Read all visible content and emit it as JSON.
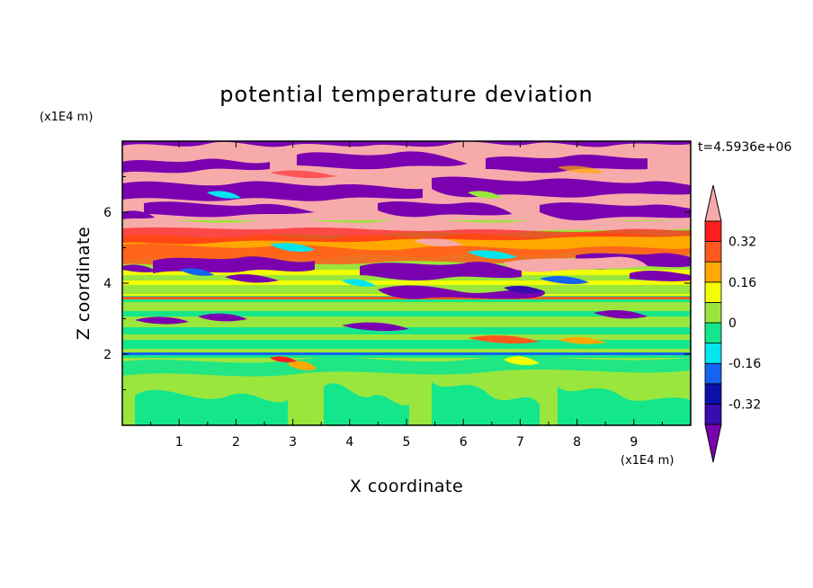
{
  "chart_data": {
    "type": "heatmap",
    "title": "potential temperature deviation",
    "xlabel": "X coordinate",
    "ylabel": "Z coordinate",
    "x_unit": "(x1E4 m)",
    "y_unit": "(x1E4 m)",
    "time_label": "t=4.5936e+06",
    "xlim": [
      0,
      10
    ],
    "ylim": [
      0,
      8
    ],
    "x_ticks": [
      "1",
      "2",
      "3",
      "4",
      "5",
      "6",
      "7",
      "8",
      "9"
    ],
    "y_ticks": [
      "2",
      "4",
      "6"
    ],
    "colorbar": {
      "labels": [
        "0.32",
        "0.16",
        "0",
        "-0.16",
        "-0.32"
      ],
      "label_values": [
        0.32,
        0.16,
        0,
        -0.16,
        -0.32
      ],
      "levels": [
        -0.4,
        -0.32,
        -0.24,
        -0.16,
        -0.08,
        0,
        0.08,
        0.16,
        0.24,
        0.32,
        0.4
      ],
      "colors": [
        "#7a00b0",
        "#3a0cb0",
        "#0a10a8",
        "#1464f0",
        "#00e6ee",
        "#14e68c",
        "#9ae63c",
        "#f2ff00",
        "#ffa800",
        "#ff5a1e",
        "#ff1e1e",
        "#f7aaaa"
      ],
      "extend": "both"
    },
    "layers": [
      {
        "z_range": [
          0,
          1.9
        ],
        "dominant": [
          "-0.08 to 0",
          "0 to 0.08"
        ]
      },
      {
        "z_range": [
          1.9,
          3.7
        ],
        "dominant": [
          "0 to 0.08"
        ],
        "note": "horizontal stratified bands"
      },
      {
        "z_range": [
          3.6,
          3.65
        ],
        "dominant": [
          ">0.32"
        ]
      },
      {
        "z_range": [
          3.7,
          5.8
        ],
        "dominant": [
          "mixed -0.4 to 0.4"
        ]
      },
      {
        "z_range": [
          5.8,
          8
        ],
        "dominant": [
          "< -0.4",
          "> 0.4"
        ]
      }
    ]
  }
}
